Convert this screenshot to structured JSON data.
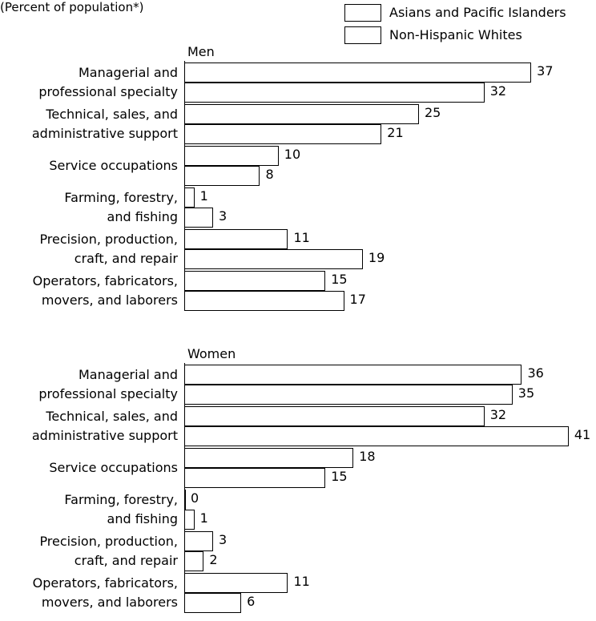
{
  "chart_data": {
    "type": "bar",
    "orientation": "horizontal",
    "subtitle": "(Percent of population*)",
    "legend": "top-right",
    "series": [
      {
        "name": "Asians and Pacific Islanders",
        "color": "#ffffff"
      },
      {
        "name": "Non-Hispanic Whites",
        "color": "#ffffff"
      }
    ],
    "panels": [
      {
        "title": "Men",
        "categories": [
          "Managerial and\nprofessional specialty",
          "Technical, sales, and\nadministrative support",
          "Service occupations",
          "Farming, forestry,\nand fishing",
          "Precision, production,\ncraft, and repair",
          "Operators, fabricators,\nmovers, and laborers"
        ],
        "series": [
          {
            "values": [
              37,
              25,
              10,
              1,
              11,
              15
            ]
          },
          {
            "values": [
              32,
              21,
              8,
              3,
              19,
              17
            ]
          }
        ]
      },
      {
        "title": "Women",
        "categories": [
          "Managerial and\nprofessional specialty",
          "Technical, sales, and\nadministrative support",
          "Service occupations",
          "Farming, forestry,\nand fishing",
          "Precision, production,\ncraft, and repair",
          "Operators, fabricators,\nmovers, and laborers"
        ],
        "series": [
          {
            "values": [
              36,
              32,
              18,
              0,
              3,
              11
            ]
          },
          {
            "values": [
              35,
              41,
              15,
              1,
              2,
              6
            ]
          }
        ]
      }
    ]
  }
}
